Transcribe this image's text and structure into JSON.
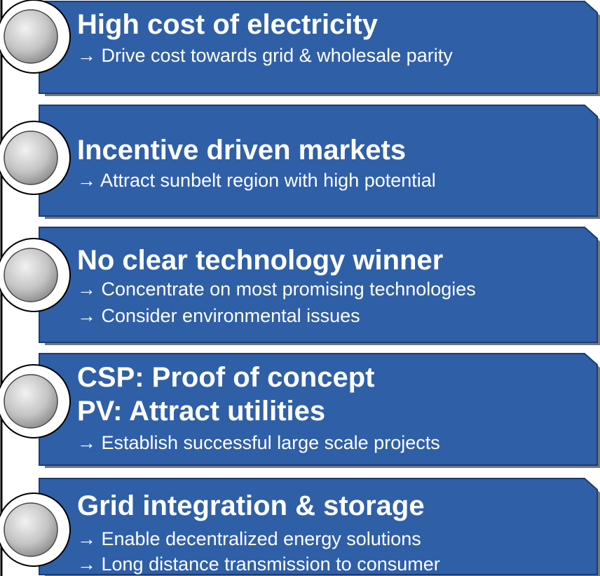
{
  "panels": [
    {
      "titles": [
        "High cost of electricity"
      ],
      "points": [
        "→ Drive cost towards grid & wholesale parity"
      ]
    },
    {
      "titles": [
        "Incentive driven markets"
      ],
      "points": [
        "→ Attract sunbelt region with high potential"
      ]
    },
    {
      "titles": [
        "No clear technology winner"
      ],
      "points": [
        "→ Concentrate on most promising technologies",
        "→ Consider environmental issues"
      ]
    },
    {
      "titles": [
        "CSP: Proof of concept",
        "PV: Attract utilities"
      ],
      "points": [
        "→ Establish successful large scale projects"
      ]
    },
    {
      "titles": [
        "Grid integration & storage"
      ],
      "points": [
        "→ Enable decentralized energy solutions",
        "→ Long distance transmission to consumer"
      ]
    }
  ]
}
